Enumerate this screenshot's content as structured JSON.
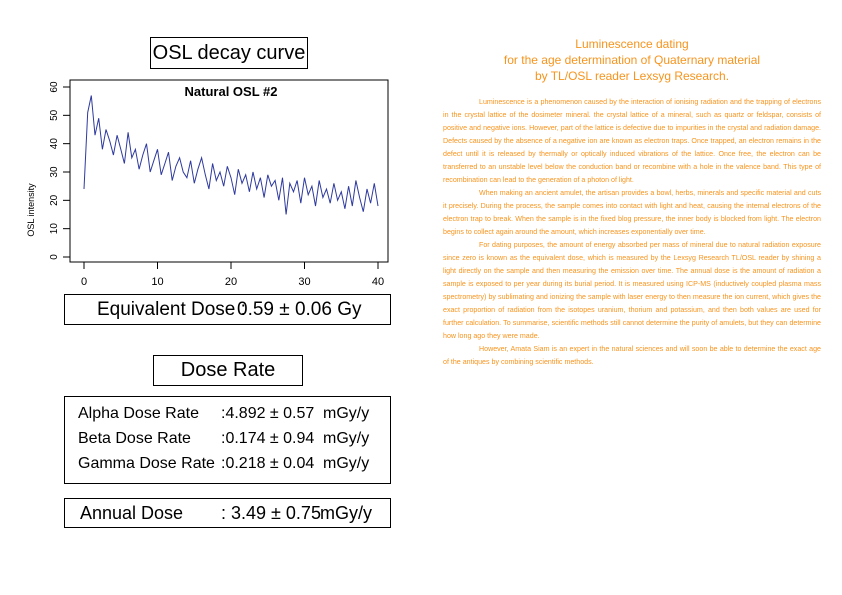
{
  "osl_title": "OSL decay curve",
  "chart_data": {
    "type": "line",
    "title": "Natural OSL #2",
    "xlabel": "",
    "ylabel": "OSL intensity",
    "xlim": [
      0,
      40
    ],
    "ylim": [
      0,
      60
    ],
    "xticks": [
      "0",
      "10",
      "20",
      "30",
      "40"
    ],
    "yticks": [
      "0",
      "10",
      "20",
      "30",
      "40",
      "50",
      "60"
    ],
    "grid": false,
    "color": "#2e3a9e",
    "series": [
      {
        "x": [
          0,
          0.5,
          1,
          1.5,
          2,
          2.5,
          3,
          3.5,
          4,
          4.5,
          5,
          5.5,
          6,
          6.5,
          7,
          7.5,
          8,
          8.5,
          9,
          9.5,
          10,
          10.5,
          11,
          11.5,
          12,
          12.5,
          13,
          13.5,
          14,
          14.5,
          15,
          15.5,
          16,
          16.5,
          17,
          17.5,
          18,
          18.5,
          19,
          19.5,
          20,
          20.5,
          21,
          21.5,
          22,
          22.5,
          23,
          23.5,
          24,
          24.5,
          25,
          25.5,
          26,
          26.5,
          27,
          27.5,
          28,
          28.5,
          29,
          29.5,
          30,
          30.5,
          31,
          31.5,
          32,
          32.5,
          33,
          33.5,
          34,
          34.5,
          35,
          35.5,
          36,
          36.5,
          37,
          37.5,
          38,
          38.5,
          39,
          39.5,
          40
        ],
        "y": [
          24,
          51,
          57,
          43,
          49,
          38,
          45,
          41,
          36,
          43,
          38,
          33,
          44,
          35,
          38,
          31,
          36,
          40,
          30,
          34,
          38,
          29,
          33,
          37,
          27,
          32,
          35,
          30,
          28,
          34,
          26,
          31,
          35,
          29,
          24,
          33,
          27,
          30,
          25,
          32,
          28,
          22,
          31,
          26,
          29,
          23,
          30,
          24,
          28,
          21,
          29,
          25,
          27,
          20,
          28,
          15,
          26,
          23,
          27,
          19,
          28,
          22,
          25,
          18,
          27,
          21,
          24,
          19,
          26,
          20,
          23,
          17,
          25,
          18,
          27,
          21,
          16,
          24,
          19,
          26,
          18
        ]
      }
    ]
  },
  "equivalent_dose": {
    "label": "Equivalent Dose :",
    "value": "0.59 ± 0.06 Gy"
  },
  "dose_rate_title": "Dose Rate",
  "dose_rates": [
    {
      "name": "Alpha Dose Rate",
      "value": ":4.892 ± 0.57",
      "unit": "mGy/y"
    },
    {
      "name": "Beta Dose Rate",
      "value": ":0.174 ± 0.94",
      "unit": "mGy/y"
    },
    {
      "name": "Gamma Dose Rate",
      "value": ":0.218 ± 0.04",
      "unit": "mGy/y"
    }
  ],
  "annual_dose": {
    "label": "Annual Dose",
    "value": ": 3.49 ± 0.75",
    "unit": "mGy/y"
  },
  "article": {
    "title_lines": [
      "Luminescence dating",
      "for the age determination of Quaternary material",
      "by TL/OSL reader Lexsyg Research."
    ],
    "paragraphs": [
      "Luminescence is a phenomenon caused by the interaction of ionising radiation and the trapping of electrons in the crystal lattice of the dosimeter mineral. the crystal lattice of a mineral, such as quartz or feldspar, consists of positive and negative ions. However, part of the lattice is defective due to impurities in the crystal and radiation damage. Defects caused by the absence of a negative ion are known as electron traps. Once trapped, an electron remains in the defect until it is released by thermally or optically induced vibrations of the lattice. Once free, the electron can be transferred to an unstable level below the conduction band or recombine with a hole in the valence band. This type of recombination can lead to the generation of a photon of light.",
      "When making an ancient amulet, the artisan provides a bowl, herbs, minerals and specific material and cuts it precisely. During the process, the sample comes into contact with light and heat, causing the internal electrons of the electron trap to break. When the sample is in the fixed blog pressure, the inner body is blocked from light. The electron begins to collect again around the amount, which increases exponentially over time.",
      "For dating purposes, the amount of energy absorbed per mass of mineral due to natural radiation exposure since zero is known as the equivalent dose, which is measured by the Lexsyg Research TL/OSL reader by shining a light directly on the sample and then measuring the emission over time. The annual dose is the amount of radiation a sample is exposed to per year during its burial period. It is measured using ICP-MS (inductively coupled plasma mass spectrometry) by sublimating and ionizing the sample with laser energy to then measure the ion current, which gives the exact proportion of radiation from the isotopes uranium, thorium and potassium, and then both values are used for further calculation. To summarise, scientific methods still cannot determine the purity of amulets, but they can determine how long ago they were made.",
      "However, Amata Siam is an expert in the natural sciences and will soon be able to determine the exact age of the antiques by combining scientific methods."
    ]
  }
}
